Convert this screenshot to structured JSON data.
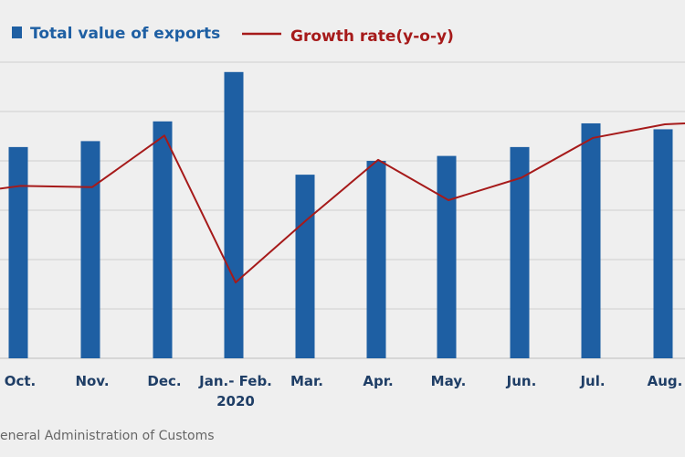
{
  "chart_data": {
    "type": "bar",
    "categories": [
      "Oct.",
      "Nov.",
      "Dec.",
      "Jan.- Feb.",
      "Mar.",
      "Apr.",
      "May.",
      "Jun.",
      "Jul.",
      "Aug."
    ],
    "category_sublabels": [
      "",
      "",
      "",
      "2020",
      "",
      "",
      "",
      "",
      "",
      ""
    ],
    "series": [
      {
        "name": "Total value of exports",
        "type": "bar",
        "color": "#1e5fa3",
        "values": [
          214,
          220,
          240,
          290,
          186,
          200,
          205,
          214,
          238,
          232
        ]
      },
      {
        "name": "Growth rate(y-o-y)",
        "type": "line",
        "color": "#a61a1a",
        "values": [
          -0.9,
          -1.1,
          7.6,
          -17.2,
          -6.6,
          3.5,
          -3.3,
          0.5,
          7.2,
          9.5
        ]
      }
    ],
    "ylim": [
      0,
      300
    ],
    "growth_ylim": [
      -30,
      20
    ],
    "grid": true,
    "legend_position": "top-left",
    "source": "eneral Administration of Customs"
  },
  "colors": {
    "background": "#efefef",
    "bar": "#1e5fa3",
    "line": "#a61a1a",
    "grid": "#cfcfcf",
    "tick_text": "#1f3e66"
  }
}
